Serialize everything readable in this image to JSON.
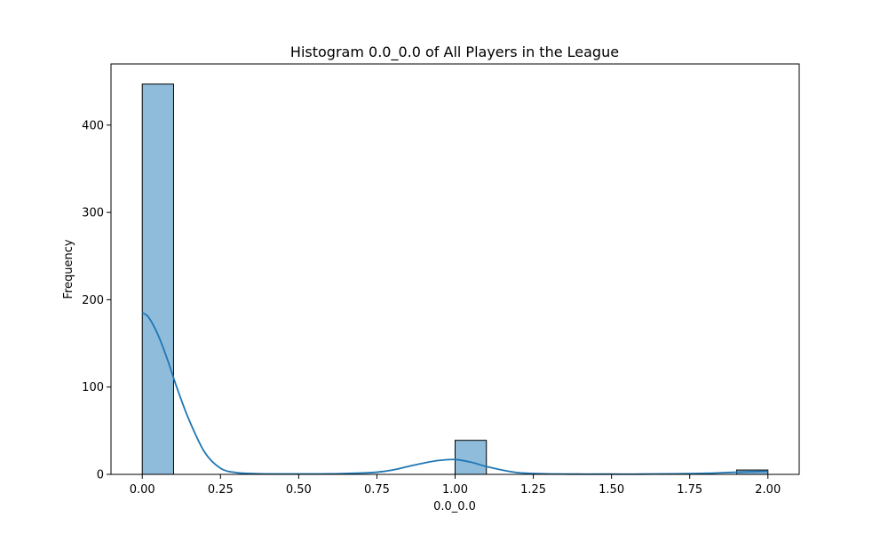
{
  "chart_data": {
    "type": "bar",
    "title": "Histogram 0.0_0.0 of All Players in the League",
    "xlabel": "0.0_0.0",
    "ylabel": "Frequency",
    "xlim": [
      -0.1,
      2.1
    ],
    "ylim": [
      0,
      470
    ],
    "x_ticks": [
      0.0,
      0.25,
      0.5,
      0.75,
      1.0,
      1.25,
      1.5,
      1.75,
      2.0
    ],
    "x_tick_labels": [
      "0.00",
      "0.25",
      "0.50",
      "0.75",
      "1.00",
      "1.25",
      "1.50",
      "1.75",
      "2.00"
    ],
    "y_ticks": [
      0,
      100,
      200,
      300,
      400
    ],
    "y_tick_labels": [
      "0",
      "100",
      "200",
      "300",
      "400"
    ],
    "bins": [
      {
        "start": 0.0,
        "end": 0.1,
        "count": 447
      },
      {
        "start": 1.0,
        "end": 1.1,
        "count": 39
      },
      {
        "start": 1.9,
        "end": 2.0,
        "count": 5
      }
    ],
    "kde": {
      "x": [
        0.0,
        0.02,
        0.05,
        0.08,
        0.11,
        0.15,
        0.2,
        0.25,
        0.3,
        0.35,
        0.4,
        0.5,
        0.6,
        0.7,
        0.75,
        0.8,
        0.85,
        0.9,
        0.95,
        1.0,
        1.05,
        1.1,
        1.15,
        1.2,
        1.25,
        1.3,
        1.4,
        1.5,
        1.6,
        1.7,
        1.8,
        1.9,
        2.0
      ],
      "y": [
        185,
        180,
        160,
        132,
        100,
        62,
        25,
        7,
        2,
        1,
        0.5,
        0.5,
        0.6,
        1.5,
        2.5,
        5,
        9,
        13,
        16,
        17,
        14,
        9,
        5,
        2,
        1,
        0.5,
        0.3,
        0.3,
        0.3,
        0.6,
        1.2,
        2.5,
        3.5
      ]
    },
    "grid": false,
    "bar_color": "#8fbcdb",
    "bar_edge_color": "#000000",
    "kde_color": "#1f77b4"
  }
}
